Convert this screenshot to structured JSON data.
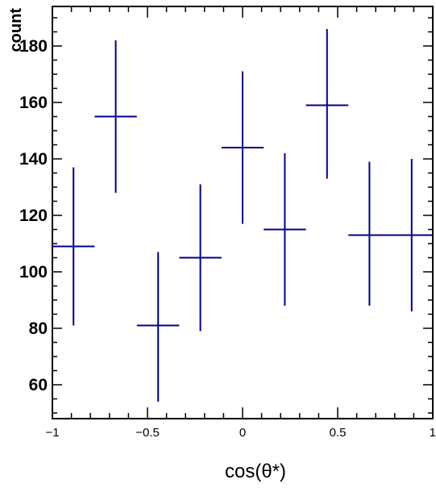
{
  "chart_data": {
    "type": "scatter",
    "title": "",
    "xlabel": "cos(θ*)",
    "ylabel": "count",
    "xlim": [
      -1,
      1
    ],
    "ylim": [
      48,
      194
    ],
    "x_ticks": [
      -1,
      -0.5,
      0,
      0.5,
      1
    ],
    "x_tick_labels": [
      "−1",
      "−0.5",
      "0",
      "0.5",
      "1"
    ],
    "y_ticks": [
      60,
      80,
      100,
      120,
      140,
      160,
      180
    ],
    "y_tick_labels": [
      "60",
      "80",
      "100",
      "120",
      "140",
      "160",
      "180"
    ],
    "grid": false,
    "series": [
      {
        "color": "#00008b",
        "bin_edges": [
          -1.0,
          -0.778,
          -0.556,
          -0.333,
          -0.111,
          0.111,
          0.333,
          0.556,
          0.778,
          1.0
        ],
        "x": [
          -0.889,
          -0.667,
          -0.444,
          -0.222,
          0.0,
          0.222,
          0.444,
          0.667,
          0.889
        ],
        "y": [
          109,
          155,
          81,
          105,
          144,
          115,
          159,
          113,
          113
        ],
        "y_err_low": [
          28,
          27,
          27,
          26,
          27,
          27,
          26,
          25,
          27
        ],
        "y_err_high": [
          28,
          27,
          26,
          26,
          27,
          27,
          27,
          26,
          27
        ]
      }
    ]
  }
}
